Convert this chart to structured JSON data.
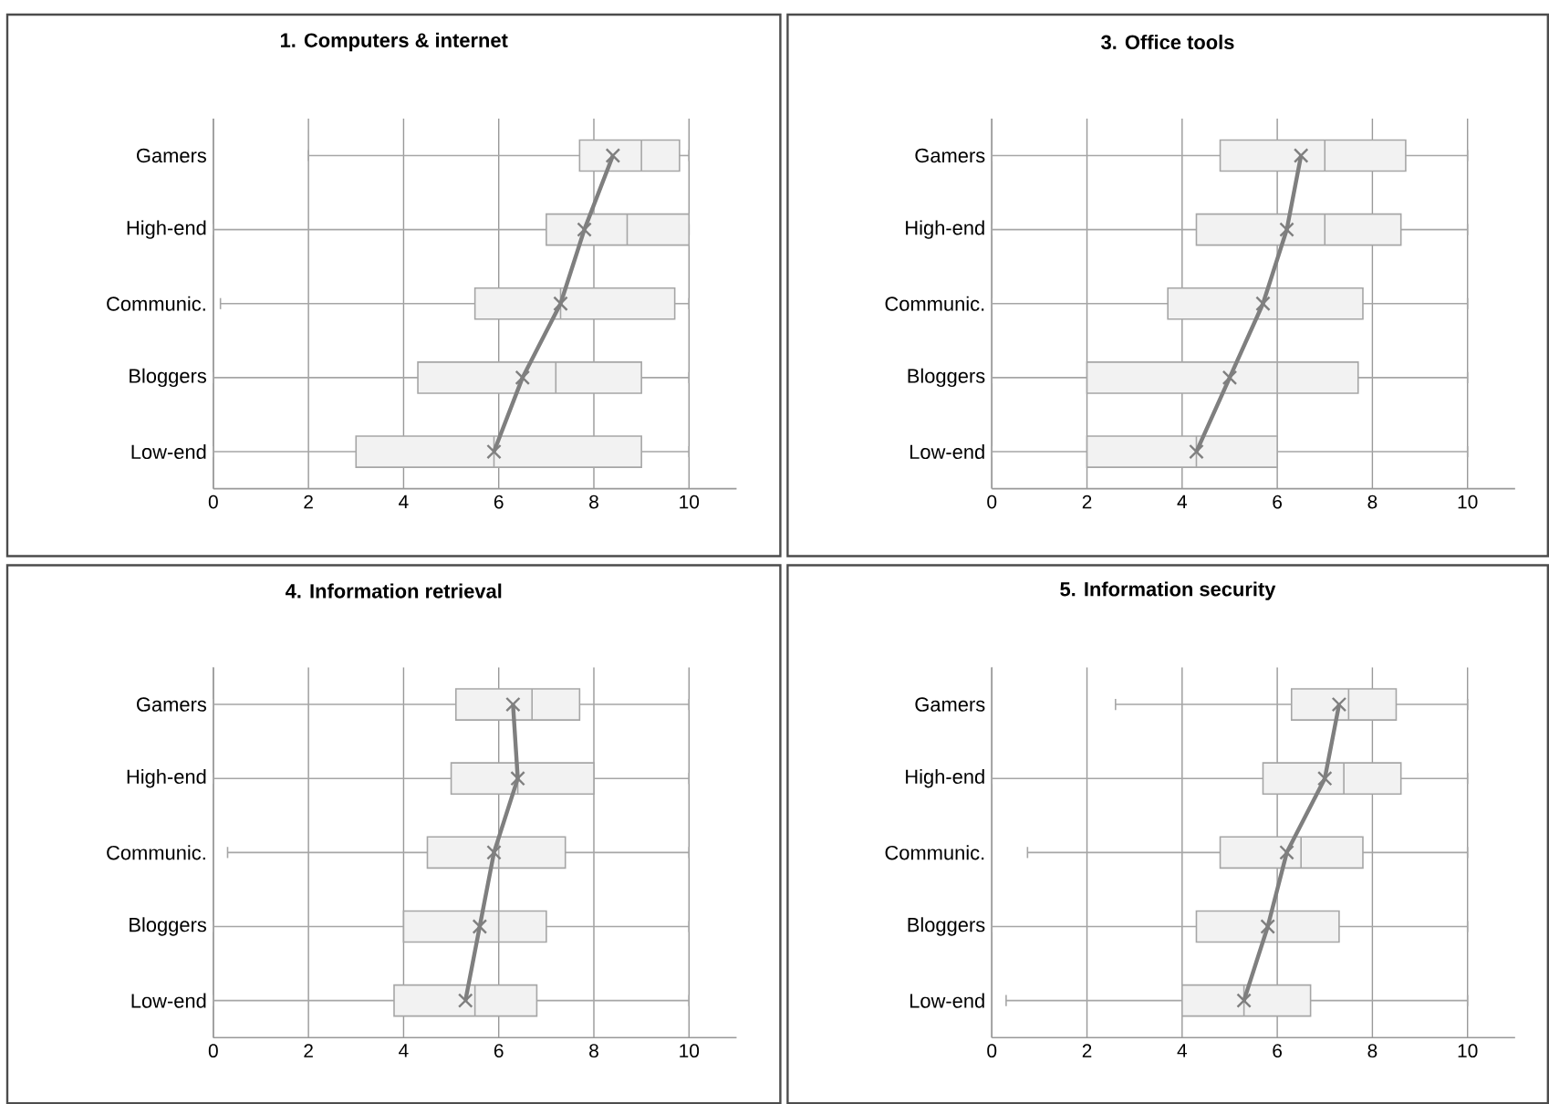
{
  "chart_data": [
    {
      "type": "box",
      "title": "1. Computers & internet",
      "orientation": "horizontal",
      "categories": [
        "Gamers",
        "High-end",
        "Communic.",
        "Bloggers",
        "Low-end"
      ],
      "color": "#f2f2f2",
      "xlim": [
        0,
        11
      ],
      "xticks": [
        0,
        2,
        4,
        6,
        8,
        10
      ],
      "grid": "x",
      "boxes": [
        {
          "low": 2.0,
          "q1": 7.7,
          "median": 9.0,
          "q3": 9.8,
          "high": 10
        },
        {
          "low": 0,
          "q1": 7.0,
          "median": 8.7,
          "q3": 10,
          "high": 10
        },
        {
          "low": 0.15,
          "q1": 5.5,
          "median": 7.3,
          "q3": 9.7,
          "high": 10
        },
        {
          "low": 0,
          "q1": 4.3,
          "median": 7.2,
          "q3": 9.0,
          "high": 10
        },
        {
          "low": 0,
          "q1": 3.0,
          "median": 5.9,
          "q3": 9.0,
          "high": 10
        }
      ],
      "series": [
        {
          "type": "line",
          "color": "#7f7f7f",
          "marker": "cross",
          "values": [
            8.4,
            7.8,
            7.3,
            6.5,
            5.9
          ]
        }
      ]
    },
    {
      "type": "box",
      "title": "3. Office tools",
      "orientation": "horizontal",
      "categories": [
        "Gamers",
        "High-end",
        "Communic.",
        "Bloggers",
        "Low-end"
      ],
      "color": "#f2f2f2",
      "xlim": [
        0,
        11
      ],
      "xticks": [
        0,
        2,
        4,
        6,
        8,
        10
      ],
      "grid": "x",
      "boxes": [
        {
          "low": 0,
          "q1": 4.8,
          "median": 7.0,
          "q3": 8.7,
          "high": 10
        },
        {
          "low": 0,
          "q1": 4.3,
          "median": 7.0,
          "q3": 8.6,
          "high": 10
        },
        {
          "low": 0,
          "q1": 3.7,
          "median": 6.0,
          "q3": 7.8,
          "high": 10
        },
        {
          "low": 0,
          "q1": 2.0,
          "median": 6.0,
          "q3": 7.7,
          "high": 10
        },
        {
          "low": 0,
          "q1": 2.0,
          "median": 4.3,
          "q3": 6.0,
          "high": 10
        }
      ],
      "series": [
        {
          "type": "line",
          "color": "#7f7f7f",
          "marker": "cross",
          "values": [
            6.5,
            6.2,
            5.7,
            5.0,
            4.3
          ]
        }
      ]
    },
    {
      "type": "box",
      "title": "4. Information retrieval",
      "orientation": "horizontal",
      "categories": [
        "Gamers",
        "High-end",
        "Communic.",
        "Bloggers",
        "Low-end"
      ],
      "color": "#f2f2f2",
      "xlim": [
        0,
        11
      ],
      "xticks": [
        0,
        2,
        4,
        6,
        8,
        10
      ],
      "grid": "x",
      "boxes": [
        {
          "low": 0,
          "q1": 5.1,
          "median": 6.7,
          "q3": 7.7,
          "high": 10
        },
        {
          "low": 0,
          "q1": 5.0,
          "median": 6.4,
          "q3": 8.0,
          "high": 10
        },
        {
          "low": 0.3,
          "q1": 4.5,
          "median": 6.0,
          "q3": 7.4,
          "high": 10
        },
        {
          "low": 0,
          "q1": 4.0,
          "median": 6.0,
          "q3": 7.0,
          "high": 10
        },
        {
          "low": 0,
          "q1": 3.8,
          "median": 5.5,
          "q3": 6.8,
          "high": 10
        }
      ],
      "series": [
        {
          "type": "line",
          "color": "#7f7f7f",
          "marker": "cross",
          "values": [
            6.3,
            6.4,
            5.9,
            5.6,
            5.3
          ]
        }
      ]
    },
    {
      "type": "box",
      "title": "5. Information security",
      "orientation": "horizontal",
      "categories": [
        "Gamers",
        "High-end",
        "Communic.",
        "Bloggers",
        "Low-end"
      ],
      "color": "#f2f2f2",
      "xlim": [
        0,
        11
      ],
      "xticks": [
        0,
        2,
        4,
        6,
        8,
        10
      ],
      "grid": "x",
      "boxes": [
        {
          "low": 2.6,
          "q1": 6.3,
          "median": 7.5,
          "q3": 8.5,
          "high": 10
        },
        {
          "low": 0,
          "q1": 5.7,
          "median": 7.4,
          "q3": 8.6,
          "high": 10
        },
        {
          "low": 0.75,
          "q1": 4.8,
          "median": 6.5,
          "q3": 7.8,
          "high": 10
        },
        {
          "low": 0,
          "q1": 4.3,
          "median": 6.0,
          "q3": 7.3,
          "high": 10
        },
        {
          "low": 0.3,
          "q1": 4.0,
          "median": 5.3,
          "q3": 6.7,
          "high": 10
        }
      ],
      "series": [
        {
          "type": "line",
          "color": "#7f7f7f",
          "marker": "cross",
          "values": [
            7.3,
            7.0,
            6.2,
            5.8,
            5.3
          ]
        }
      ]
    }
  ]
}
